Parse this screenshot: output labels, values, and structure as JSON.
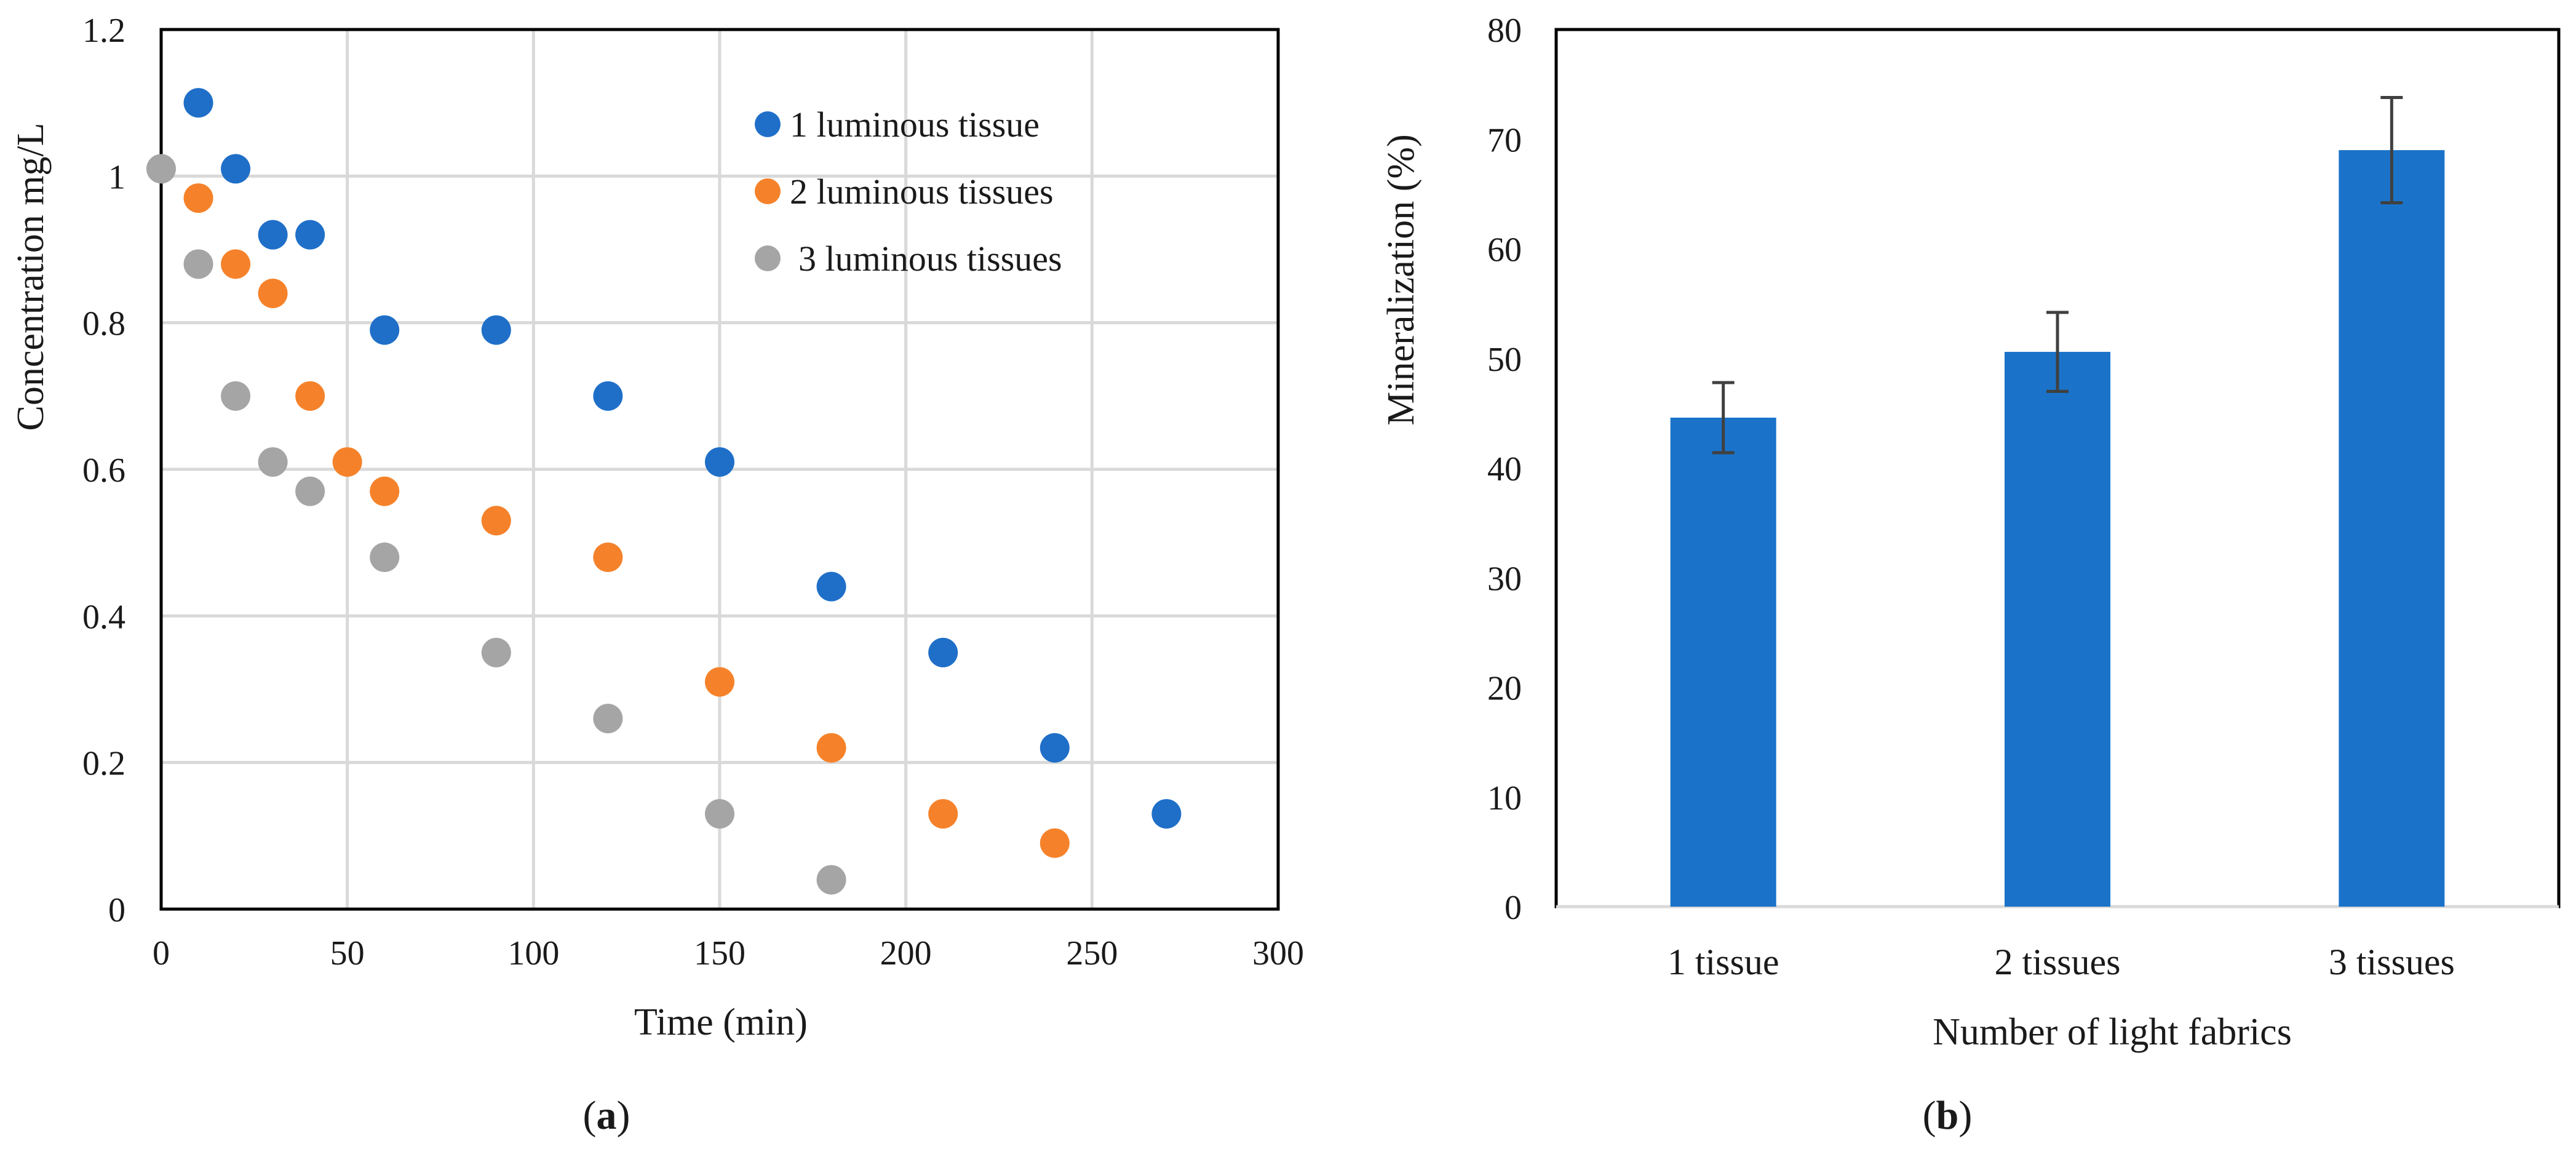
{
  "panels": {
    "a": {
      "caption_letter": "a"
    },
    "b": {
      "caption_letter": "b"
    }
  },
  "chart_data": [
    {
      "type": "scatter",
      "id": "a",
      "title": "",
      "xlabel": "Time (min)",
      "ylabel": "Concentration mg/L",
      "xlim": [
        0,
        300
      ],
      "ylim": [
        0,
        1.2
      ],
      "xticks": [
        0,
        50,
        100,
        150,
        200,
        250,
        300
      ],
      "xtick_labels": [
        "0",
        "50",
        "100",
        "150",
        "200",
        "250",
        "300"
      ],
      "yticks": [
        0,
        0.2,
        0.4,
        0.6,
        0.8,
        1,
        1.2
      ],
      "ytick_labels": [
        "0",
        "0.2",
        "0.4",
        "0.6",
        "0.8",
        "1",
        "1.2"
      ],
      "grid": true,
      "legend_position": "top-right",
      "series": [
        {
          "name": "1 luminous tissue",
          "color": "#1f6fc8",
          "x": [
            10,
            20,
            30,
            40,
            60,
            90,
            120,
            150,
            180,
            210,
            240,
            270
          ],
          "y": [
            1.1,
            1.01,
            0.92,
            0.92,
            0.79,
            0.79,
            0.7,
            0.61,
            0.44,
            0.35,
            0.22,
            0.13
          ]
        },
        {
          "name": "2 luminous tissues",
          "color": "#f5822a",
          "x": [
            10,
            20,
            30,
            40,
            50,
            60,
            90,
            120,
            150,
            180,
            210,
            240
          ],
          "y": [
            0.97,
            0.88,
            0.84,
            0.7,
            0.61,
            0.57,
            0.53,
            0.48,
            0.31,
            0.22,
            0.13,
            0.09
          ]
        },
        {
          "name": "3 luminous tissues",
          "color": "#a5a5a5",
          "x": [
            0,
            10,
            20,
            30,
            40,
            60,
            90,
            120,
            150,
            180
          ],
          "y": [
            1.01,
            0.88,
            0.7,
            0.61,
            0.57,
            0.48,
            0.35,
            0.26,
            0.13,
            0.04
          ]
        }
      ]
    },
    {
      "type": "bar",
      "id": "b",
      "title": "",
      "xlabel": "Number of light fabrics",
      "ylabel": "Mineralization (%)",
      "categories": [
        "1 tissue",
        "2 tissues",
        "3 tissues"
      ],
      "values": [
        44.6,
        50.6,
        69.0
      ],
      "errors": [
        3.2,
        3.6,
        4.8
      ],
      "color": "#1a73c9",
      "ylim": [
        0,
        80
      ],
      "yticks": [
        0,
        10,
        20,
        30,
        40,
        50,
        60,
        70,
        80
      ],
      "ytick_labels": [
        "0",
        "10",
        "20",
        "30",
        "40",
        "50",
        "60",
        "70",
        "80"
      ],
      "grid": false
    }
  ]
}
